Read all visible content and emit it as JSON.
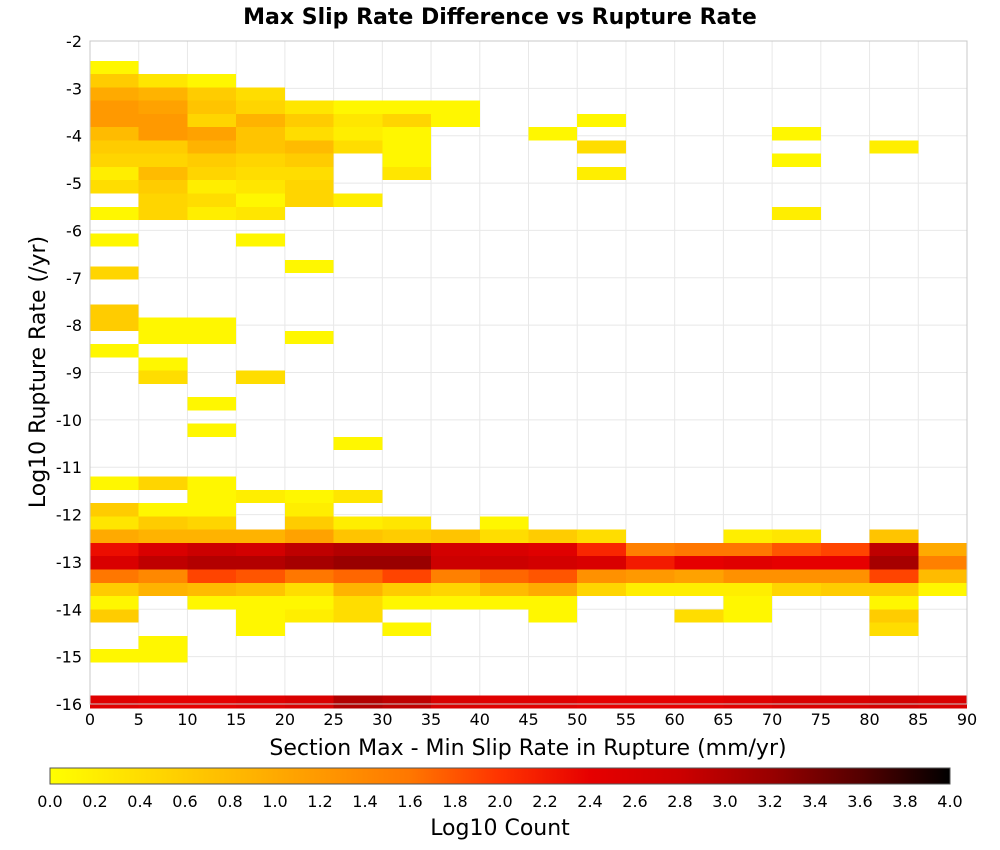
{
  "chart_data": {
    "type": "heatmap",
    "title": "Max Slip Rate Difference vs Rupture Rate",
    "xlabel": "Section Max - Min Slip Rate in Rupture (mm/yr)",
    "ylabel": "Log10 Rupture Rate (/yr)",
    "xlim": [
      0,
      90
    ],
    "ylim": [
      -16,
      -2
    ],
    "x_ticks": [
      "0",
      "5",
      "10",
      "15",
      "20",
      "25",
      "30",
      "35",
      "40",
      "45",
      "50",
      "55",
      "60",
      "65",
      "70",
      "75",
      "80",
      "85",
      "90"
    ],
    "y_ticks": [
      "-2",
      "-3",
      "-4",
      "-5",
      "-6",
      "-7",
      "-8",
      "-9",
      "-10",
      "-11",
      "-12",
      "-13",
      "-14",
      "-15",
      "-16"
    ],
    "cell_width": 5,
    "cell_height": 0.28,
    "grid": true,
    "colorbar": {
      "label": "Log10 Count",
      "min": 0.0,
      "max": 4.0,
      "ticks": [
        "0.0",
        "0.2",
        "0.4",
        "0.6",
        "0.8",
        "1.0",
        "1.2",
        "1.4",
        "1.6",
        "1.8",
        "2.0",
        "2.2",
        "2.4",
        "2.6",
        "2.8",
        "3.0",
        "3.2",
        "3.4",
        "3.6",
        "3.8",
        "4.0"
      ],
      "colors": [
        "#ffff00",
        "#ffdd00",
        "#ffbb00",
        "#ff9900",
        "#ff7700",
        "#ff3300",
        "#e60000",
        "#cc0000",
        "#990000",
        "#550000",
        "#000000"
      ]
    },
    "cells": [
      [
        0,
        -2.56,
        0.1
      ],
      [
        0,
        -2.84,
        0.6
      ],
      [
        5,
        -2.84,
        0.3
      ],
      [
        10,
        -2.84,
        0.1
      ],
      [
        0,
        -3.12,
        1.0
      ],
      [
        5,
        -3.12,
        0.9
      ],
      [
        10,
        -3.12,
        0.6
      ],
      [
        15,
        -3.12,
        0.4
      ],
      [
        0,
        -3.4,
        1.2
      ],
      [
        5,
        -3.4,
        1.1
      ],
      [
        10,
        -3.4,
        0.7
      ],
      [
        15,
        -3.4,
        0.5
      ],
      [
        20,
        -3.4,
        0.3
      ],
      [
        25,
        -3.4,
        0.1
      ],
      [
        30,
        -3.4,
        0.1
      ],
      [
        35,
        -3.4,
        0.1
      ],
      [
        0,
        -3.68,
        1.2
      ],
      [
        5,
        -3.68,
        1.2
      ],
      [
        10,
        -3.68,
        0.5
      ],
      [
        15,
        -3.68,
        0.9
      ],
      [
        20,
        -3.68,
        0.6
      ],
      [
        25,
        -3.68,
        0.3
      ],
      [
        30,
        -3.68,
        0.5
      ],
      [
        35,
        -3.68,
        0.1
      ],
      [
        50,
        -3.68,
        0.1
      ],
      [
        0,
        -3.96,
        0.8
      ],
      [
        5,
        -3.96,
        1.2
      ],
      [
        10,
        -3.96,
        1.1
      ],
      [
        15,
        -3.96,
        0.7
      ],
      [
        20,
        -3.96,
        0.4
      ],
      [
        25,
        -3.96,
        0.2
      ],
      [
        30,
        -3.96,
        0.1
      ],
      [
        45,
        -3.96,
        0.1
      ],
      [
        70,
        -3.96,
        0.1
      ],
      [
        0,
        -4.24,
        0.6
      ],
      [
        5,
        -4.24,
        0.6
      ],
      [
        10,
        -4.24,
        0.9
      ],
      [
        15,
        -4.24,
        0.7
      ],
      [
        20,
        -4.24,
        0.8
      ],
      [
        25,
        -4.24,
        0.4
      ],
      [
        30,
        -4.24,
        0.1
      ],
      [
        50,
        -4.24,
        0.4
      ],
      [
        80,
        -4.24,
        0.2
      ],
      [
        0,
        -4.52,
        0.5
      ],
      [
        5,
        -4.52,
        0.5
      ],
      [
        10,
        -4.52,
        0.6
      ],
      [
        15,
        -4.52,
        0.5
      ],
      [
        20,
        -4.52,
        0.6
      ],
      [
        30,
        -4.52,
        0.1
      ],
      [
        70,
        -4.52,
        0.1
      ],
      [
        0,
        -4.8,
        0.2
      ],
      [
        5,
        -4.8,
        0.8
      ],
      [
        10,
        -4.8,
        0.5
      ],
      [
        15,
        -4.8,
        0.4
      ],
      [
        20,
        -4.8,
        0.4
      ],
      [
        30,
        -4.8,
        0.3
      ],
      [
        50,
        -4.8,
        0.2
      ],
      [
        0,
        -5.08,
        0.4
      ],
      [
        5,
        -5.08,
        0.6
      ],
      [
        10,
        -5.08,
        0.2
      ],
      [
        15,
        -5.08,
        0.3
      ],
      [
        20,
        -5.08,
        0.5
      ],
      [
        5,
        -5.36,
        0.5
      ],
      [
        10,
        -5.36,
        0.4
      ],
      [
        15,
        -5.36,
        0.1
      ],
      [
        20,
        -5.36,
        0.5
      ],
      [
        25,
        -5.36,
        0.2
      ],
      [
        0,
        -5.64,
        0.1
      ],
      [
        5,
        -5.64,
        0.5
      ],
      [
        10,
        -5.64,
        0.2
      ],
      [
        15,
        -5.64,
        0.3
      ],
      [
        70,
        -5.64,
        0.2
      ],
      [
        0,
        -6.2,
        0.1
      ],
      [
        15,
        -6.2,
        0.1
      ],
      [
        20,
        -6.76,
        0.1
      ],
      [
        0,
        -6.9,
        0.5
      ],
      [
        0,
        -7.7,
        0.6
      ],
      [
        0,
        -7.98,
        0.6
      ],
      [
        5,
        -7.98,
        0.1
      ],
      [
        10,
        -7.98,
        0.1
      ],
      [
        5,
        -8.26,
        0.1
      ],
      [
        10,
        -8.26,
        0.1
      ],
      [
        20,
        -8.26,
        0.1
      ],
      [
        0,
        -8.54,
        0.1
      ],
      [
        5,
        -8.82,
        0.1
      ],
      [
        5,
        -9.1,
        0.4
      ],
      [
        15,
        -9.1,
        0.4
      ],
      [
        10,
        -9.66,
        0.1
      ],
      [
        10,
        -10.22,
        0.1
      ],
      [
        25,
        -10.5,
        0.1
      ],
      [
        0,
        -11.34,
        0.1
      ],
      [
        5,
        -11.34,
        0.5
      ],
      [
        10,
        -11.34,
        0.1
      ],
      [
        10,
        -11.62,
        0.1
      ],
      [
        15,
        -11.62,
        0.2
      ],
      [
        20,
        -11.62,
        0.1
      ],
      [
        25,
        -11.62,
        0.3
      ],
      [
        0,
        -11.9,
        0.6
      ],
      [
        5,
        -11.9,
        0.1
      ],
      [
        10,
        -11.9,
        0.1
      ],
      [
        20,
        -11.9,
        0.2
      ],
      [
        0,
        -12.18,
        0.3
      ],
      [
        5,
        -12.18,
        0.6
      ],
      [
        10,
        -12.18,
        0.5
      ],
      [
        20,
        -12.18,
        0.6
      ],
      [
        25,
        -12.18,
        0.2
      ],
      [
        30,
        -12.18,
        0.3
      ],
      [
        40,
        -12.18,
        0.1
      ],
      [
        0,
        -12.46,
        1.0
      ],
      [
        5,
        -12.46,
        0.9
      ],
      [
        10,
        -12.46,
        0.9
      ],
      [
        15,
        -12.46,
        0.9
      ],
      [
        20,
        -12.46,
        1.1
      ],
      [
        25,
        -12.46,
        0.7
      ],
      [
        30,
        -12.46,
        0.6
      ],
      [
        35,
        -12.46,
        0.7
      ],
      [
        40,
        -12.46,
        0.4
      ],
      [
        45,
        -12.46,
        0.6
      ],
      [
        50,
        -12.46,
        0.4
      ],
      [
        65,
        -12.46,
        0.2
      ],
      [
        70,
        -12.46,
        0.3
      ],
      [
        80,
        -12.46,
        0.7
      ],
      [
        0,
        -12.74,
        2.3
      ],
      [
        5,
        -12.74,
        2.6
      ],
      [
        10,
        -12.74,
        2.8
      ],
      [
        15,
        -12.74,
        2.7
      ],
      [
        20,
        -12.74,
        2.9
      ],
      [
        25,
        -12.74,
        3.0
      ],
      [
        30,
        -12.74,
        3.0
      ],
      [
        35,
        -12.74,
        2.7
      ],
      [
        40,
        -12.74,
        2.6
      ],
      [
        45,
        -12.74,
        2.5
      ],
      [
        50,
        -12.74,
        2.1
      ],
      [
        55,
        -12.74,
        1.5
      ],
      [
        60,
        -12.74,
        1.6
      ],
      [
        65,
        -12.74,
        1.6
      ],
      [
        70,
        -12.74,
        1.8
      ],
      [
        75,
        -12.74,
        1.9
      ],
      [
        80,
        -12.74,
        2.9
      ],
      [
        85,
        -12.74,
        1.0
      ],
      [
        0,
        -13.02,
        2.6
      ],
      [
        5,
        -13.02,
        2.9
      ],
      [
        10,
        -13.02,
        3.0
      ],
      [
        15,
        -13.02,
        3.0
      ],
      [
        20,
        -13.02,
        3.1
      ],
      [
        25,
        -13.02,
        3.2
      ],
      [
        30,
        -13.02,
        3.2
      ],
      [
        35,
        -13.02,
        2.8
      ],
      [
        40,
        -13.02,
        2.8
      ],
      [
        45,
        -13.02,
        2.7
      ],
      [
        50,
        -13.02,
        2.6
      ],
      [
        55,
        -13.02,
        2.2
      ],
      [
        60,
        -13.02,
        2.4
      ],
      [
        65,
        -13.02,
        2.5
      ],
      [
        70,
        -13.02,
        2.4
      ],
      [
        75,
        -13.02,
        2.4
      ],
      [
        80,
        -13.02,
        3.1
      ],
      [
        85,
        -13.02,
        1.5
      ],
      [
        0,
        -13.3,
        1.6
      ],
      [
        5,
        -13.3,
        1.4
      ],
      [
        10,
        -13.3,
        1.9
      ],
      [
        15,
        -13.3,
        1.8
      ],
      [
        20,
        -13.3,
        1.6
      ],
      [
        25,
        -13.3,
        1.7
      ],
      [
        30,
        -13.3,
        1.9
      ],
      [
        35,
        -13.3,
        1.5
      ],
      [
        40,
        -13.3,
        1.7
      ],
      [
        45,
        -13.3,
        1.8
      ],
      [
        50,
        -13.3,
        1.3
      ],
      [
        55,
        -13.3,
        1.2
      ],
      [
        60,
        -13.3,
        1.1
      ],
      [
        65,
        -13.3,
        1.3
      ],
      [
        70,
        -13.3,
        1.3
      ],
      [
        75,
        -13.3,
        1.3
      ],
      [
        80,
        -13.3,
        1.9
      ],
      [
        85,
        -13.3,
        0.8
      ],
      [
        0,
        -13.58,
        0.6
      ],
      [
        5,
        -13.58,
        0.9
      ],
      [
        10,
        -13.58,
        0.8
      ],
      [
        15,
        -13.58,
        0.7
      ],
      [
        20,
        -13.58,
        0.4
      ],
      [
        25,
        -13.58,
        0.9
      ],
      [
        30,
        -13.58,
        0.6
      ],
      [
        35,
        -13.58,
        0.5
      ],
      [
        40,
        -13.58,
        0.8
      ],
      [
        45,
        -13.58,
        1.0
      ],
      [
        50,
        -13.58,
        0.5
      ],
      [
        55,
        -13.58,
        0.2
      ],
      [
        60,
        -13.58,
        0.2
      ],
      [
        65,
        -13.58,
        0.2
      ],
      [
        70,
        -13.58,
        0.5
      ],
      [
        75,
        -13.58,
        0.6
      ],
      [
        80,
        -13.58,
        0.6
      ],
      [
        85,
        -13.58,
        0.1
      ],
      [
        0,
        -13.86,
        0.1
      ],
      [
        10,
        -13.86,
        0.1
      ],
      [
        15,
        -13.86,
        0.1
      ],
      [
        20,
        -13.86,
        0.1
      ],
      [
        25,
        -13.86,
        0.4
      ],
      [
        30,
        -13.86,
        0.1
      ],
      [
        35,
        -13.86,
        0.1
      ],
      [
        40,
        -13.86,
        0.1
      ],
      [
        45,
        -13.86,
        0.1
      ],
      [
        65,
        -13.86,
        0.1
      ],
      [
        80,
        -13.86,
        0.1
      ],
      [
        0,
        -14.14,
        0.6
      ],
      [
        15,
        -14.14,
        0.1
      ],
      [
        20,
        -14.14,
        0.2
      ],
      [
        25,
        -14.14,
        0.4
      ],
      [
        45,
        -14.14,
        0.1
      ],
      [
        60,
        -14.14,
        0.4
      ],
      [
        65,
        -14.14,
        0.1
      ],
      [
        80,
        -14.14,
        0.6
      ],
      [
        15,
        -14.42,
        0.1
      ],
      [
        30,
        -14.42,
        0.1
      ],
      [
        80,
        -14.42,
        0.4
      ],
      [
        5,
        -14.7,
        0.1
      ],
      [
        0,
        -14.98,
        0.1
      ],
      [
        5,
        -14.98,
        0.1
      ],
      [
        0,
        -15.96,
        2.5
      ],
      [
        5,
        -15.96,
        2.4
      ],
      [
        10,
        -15.96,
        2.4
      ],
      [
        15,
        -15.96,
        2.5
      ],
      [
        20,
        -15.96,
        2.6
      ],
      [
        25,
        -15.96,
        3.0
      ],
      [
        30,
        -15.96,
        2.9
      ],
      [
        35,
        -15.96,
        2.6
      ],
      [
        40,
        -15.96,
        2.5
      ],
      [
        45,
        -15.96,
        2.5
      ],
      [
        50,
        -15.96,
        2.4
      ],
      [
        55,
        -15.96,
        2.4
      ],
      [
        60,
        -15.96,
        2.4
      ],
      [
        65,
        -15.96,
        2.5
      ],
      [
        70,
        -15.96,
        2.6
      ],
      [
        75,
        -15.96,
        2.6
      ],
      [
        80,
        -15.96,
        2.7
      ],
      [
        85,
        -15.96,
        2.6
      ]
    ]
  }
}
